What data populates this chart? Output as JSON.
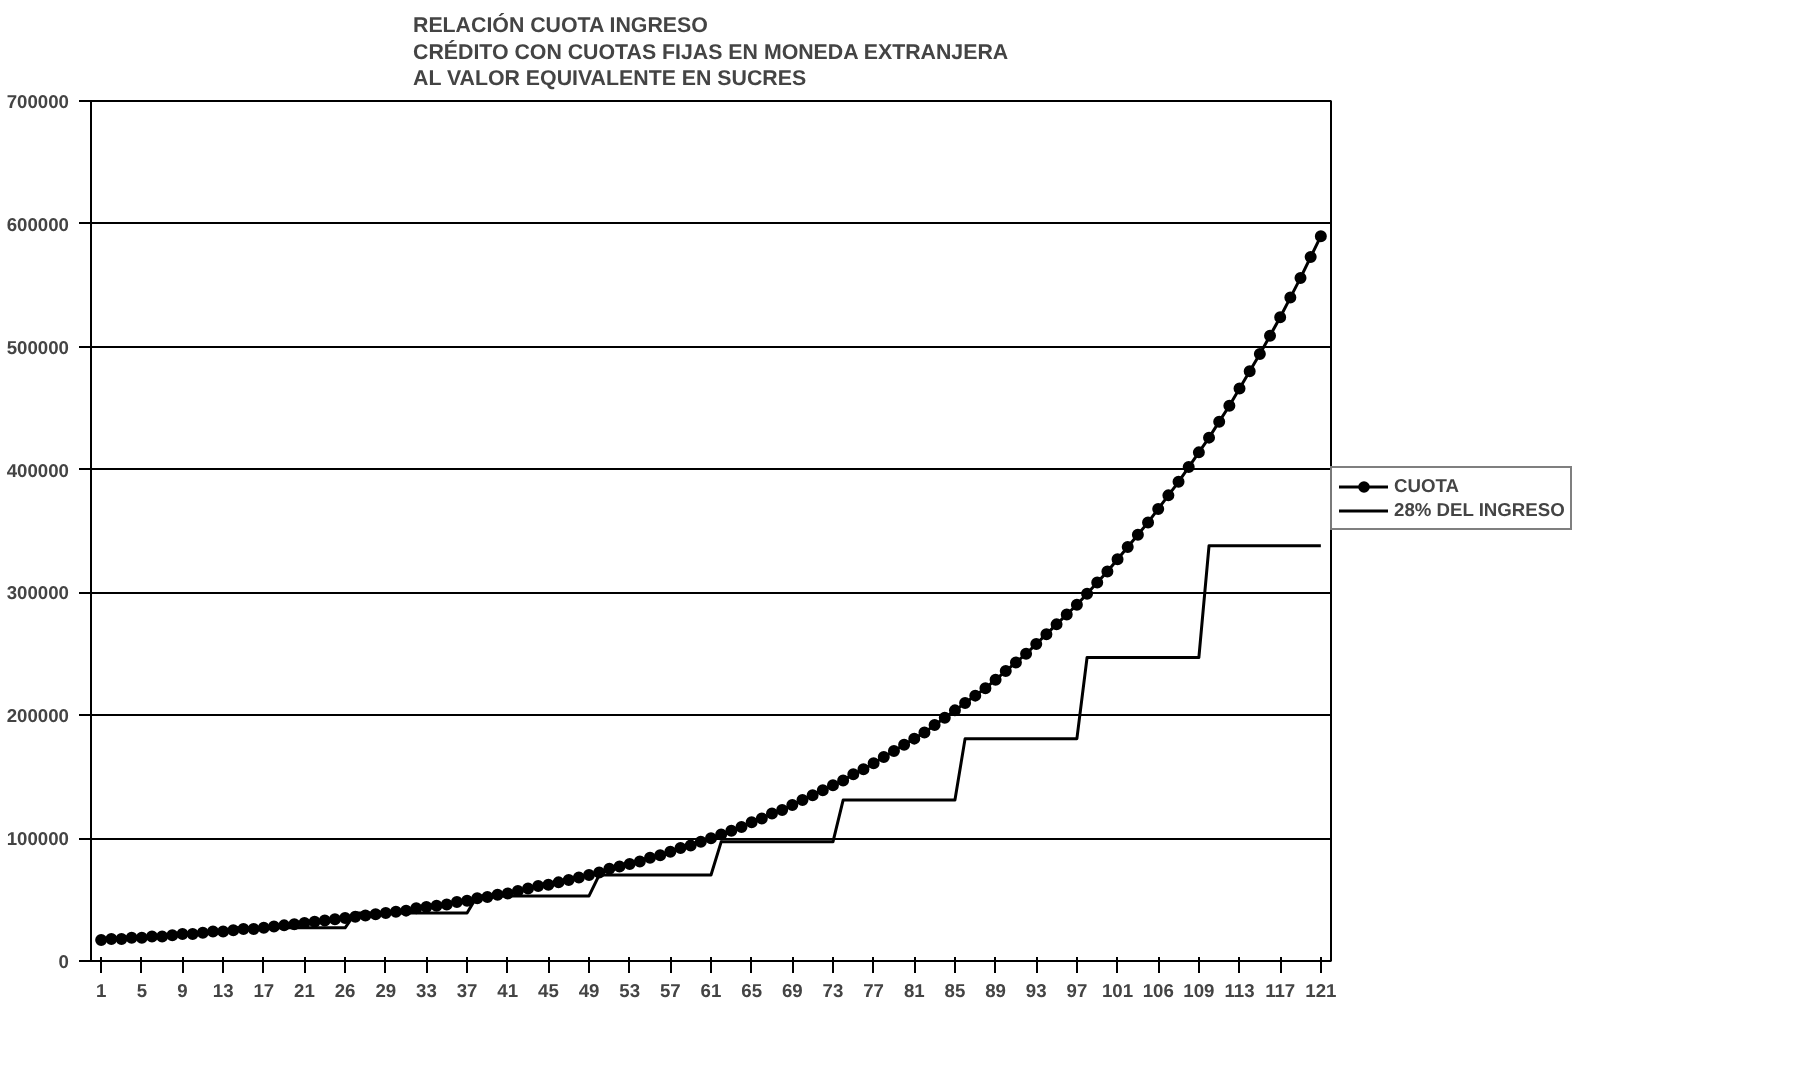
{
  "chart_data": {
    "type": "line",
    "title": "RELACIÓN CUOTA INGRESO\nCRÉDITO CON CUOTAS FIJAS EN MONEDA EXTRANJERA\nAL VALOR EQUIVALENTE EN SUCRES",
    "categories": [
      "1",
      null,
      null,
      null,
      "5",
      null,
      null,
      null,
      "9",
      null,
      null,
      null,
      "13",
      null,
      null,
      null,
      "17",
      null,
      null,
      null,
      "21",
      null,
      null,
      null,
      "26",
      null,
      null,
      null,
      "29",
      null,
      null,
      null,
      "33",
      null,
      null,
      null,
      "37",
      null,
      null,
      null,
      "41",
      null,
      null,
      null,
      "45",
      null,
      null,
      null,
      "49",
      null,
      null,
      null,
      "53",
      null,
      null,
      null,
      "57",
      null,
      null,
      null,
      "61",
      null,
      null,
      null,
      "65",
      null,
      null,
      null,
      "69",
      null,
      null,
      null,
      "73",
      null,
      null,
      null,
      "77",
      null,
      null,
      null,
      "81",
      null,
      null,
      null,
      "85",
      null,
      null,
      null,
      "89",
      null,
      null,
      null,
      "93",
      null,
      null,
      null,
      "97",
      null,
      null,
      null,
      "101",
      null,
      null,
      null,
      "106",
      null,
      null,
      null,
      "109",
      null,
      null,
      null,
      "113",
      null,
      null,
      null,
      "117",
      null,
      null,
      null,
      "121"
    ],
    "series": [
      {
        "name": "CUOTA",
        "color": "#000000",
        "marker": "circle",
        "values": [
          17000,
          18000,
          18000,
          19000,
          19000,
          20000,
          20000,
          21000,
          22000,
          22000,
          23000,
          24000,
          24000,
          25000,
          26000,
          26000,
          27000,
          28000,
          29000,
          30000,
          31000,
          32000,
          33000,
          34000,
          35000,
          36000,
          37000,
          38000,
          39000,
          40000,
          41000,
          43000,
          44000,
          45000,
          46000,
          48000,
          49000,
          51000,
          52000,
          54000,
          55000,
          57000,
          59000,
          61000,
          62000,
          64000,
          66000,
          68000,
          70000,
          72000,
          75000,
          77000,
          79000,
          81000,
          84000,
          86000,
          89000,
          92000,
          94000,
          97000,
          100000,
          103000,
          106000,
          109000,
          113000,
          116000,
          120000,
          123000,
          127000,
          131000,
          135000,
          139000,
          143000,
          147000,
          152000,
          156000,
          161000,
          166000,
          171000,
          176000,
          181000,
          186000,
          192000,
          198000,
          204000,
          210000,
          216000,
          222000,
          229000,
          236000,
          243000,
          250000,
          258000,
          266000,
          274000,
          282000,
          290000,
          299000,
          308000,
          317000,
          327000,
          337000,
          347000,
          357000,
          368000,
          379000,
          390000,
          402000,
          414000,
          426000,
          439000,
          452000,
          466000,
          480000,
          494000,
          509000,
          524000,
          540000,
          556000,
          573000,
          590000
        ]
      },
      {
        "name": "28% DEL INGRESO",
        "color": "#000000",
        "marker": "none",
        "values": [
          null,
          null,
          null,
          null,
          null,
          null,
          null,
          null,
          null,
          null,
          null,
          null,
          null,
          27000,
          27000,
          27000,
          27000,
          27000,
          27000,
          27000,
          27000,
          27000,
          27000,
          27000,
          27000,
          39000,
          39000,
          39000,
          39000,
          39000,
          39000,
          39000,
          39000,
          39000,
          39000,
          39000,
          39000,
          53000,
          53000,
          53000,
          53000,
          53000,
          53000,
          53000,
          53000,
          53000,
          53000,
          53000,
          53000,
          70000,
          70000,
          70000,
          70000,
          70000,
          70000,
          70000,
          70000,
          70000,
          70000,
          70000,
          70000,
          97000,
          97000,
          97000,
          97000,
          97000,
          97000,
          97000,
          97000,
          97000,
          97000,
          97000,
          97000,
          131000,
          131000,
          131000,
          131000,
          131000,
          131000,
          131000,
          131000,
          131000,
          131000,
          131000,
          131000,
          181000,
          181000,
          181000,
          181000,
          181000,
          181000,
          181000,
          181000,
          181000,
          181000,
          181000,
          181000,
          247000,
          247000,
          247000,
          247000,
          247000,
          247000,
          247000,
          247000,
          247000,
          247000,
          247000,
          247000,
          338000,
          338000,
          338000,
          338000,
          338000,
          338000,
          338000,
          338000,
          338000,
          338000,
          338000,
          338000
        ]
      }
    ],
    "ylim": [
      0,
      700000
    ],
    "yticks": [
      0,
      100000,
      200000,
      300000,
      400000,
      500000,
      600000,
      700000
    ],
    "grid": "y",
    "legend": "right",
    "line_style": "solid"
  }
}
